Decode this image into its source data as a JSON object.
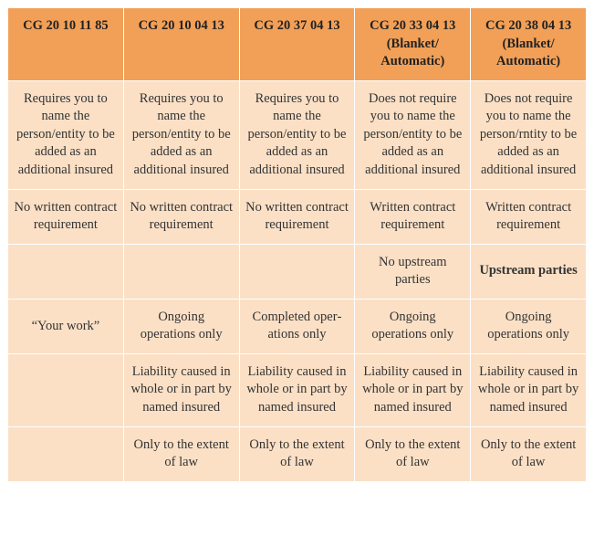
{
  "table": {
    "columns": [
      "CG 20 10 11 85",
      "CG 20 10 04 13",
      "CG 20 37 04 13",
      "CG 20 33 04 13 (Blanket/ Automatic)",
      "CG 20 38 04 13 (Blanket/ Automatic)"
    ],
    "rows": [
      [
        "Requires you to name the person/entity to be added as an additional insured",
        "Requires you to name the person/entity to be added as an additional insured",
        "Requires you to name the person/entity to be added as an additional insured",
        "Does not require you to name the person/entity to be added as an additional insured",
        "Does not require you to name the person/rntity to be added as an additional insured"
      ],
      [
        "No written contract requirement",
        "No written contract requirement",
        "No written contract requirement",
        "Written contract requirement",
        "Written contract requirement"
      ],
      [
        "",
        "",
        "",
        "No upstream parties",
        "Upstream parties"
      ],
      [
        "“Your work”",
        "Ongoing operations only",
        "Completed oper­ations only",
        "Ongoing operations only",
        "Ongoing operations only"
      ],
      [
        "",
        "Liability caused in whole or in part by named insured",
        "Liability caused in whole or in part by named insured",
        "Liability caused in whole or in part by named insured",
        "Liability caused in whole or in part by named insured"
      ],
      [
        "",
        "Only to the extent of law",
        "Only to the extent of law",
        "Only to the extent of law",
        "Only to the extent of law"
      ]
    ],
    "bold_cells": [
      {
        "row": 2,
        "col": 4
      }
    ],
    "colors": {
      "header_bg": "#f2a057",
      "cell_bg": "#fbe0c6",
      "border": "#ffffff",
      "text": "#333333"
    },
    "font": {
      "family": "Georgia, serif",
      "header_size": 14.5,
      "cell_size": 14.5
    }
  }
}
